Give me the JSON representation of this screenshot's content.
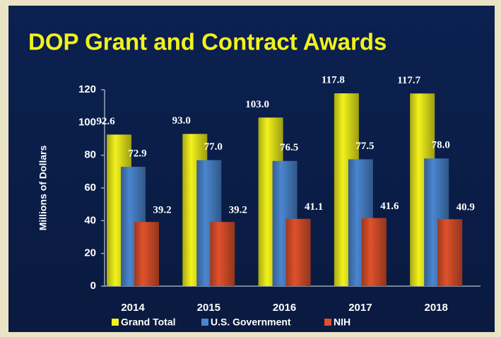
{
  "chart_data": {
    "type": "bar",
    "title": "DOP Grant and Contract Awards",
    "y_label": "Millions of Dollars",
    "categories": [
      "2014",
      "2015",
      "2016",
      "2017",
      "2018"
    ],
    "series": [
      {
        "name": "Grand Total",
        "color": "#f2f21c",
        "values": [
          92.6,
          93.0,
          103.0,
          117.8,
          117.7
        ],
        "value_labels": [
          "92.6",
          "93.0",
          "103.0",
          "117.8",
          "117.7"
        ]
      },
      {
        "name": "U.S. Government",
        "color": "#4a86cf",
        "values": [
          72.9,
          77.0,
          76.5,
          77.5,
          78.0
        ],
        "value_labels": [
          "72.9",
          "77.0",
          "76.5",
          "77.5",
          "78.0"
        ]
      },
      {
        "name": "NIH",
        "color": "#e0512b",
        "values": [
          39.2,
          39.2,
          41.1,
          41.6,
          40.9
        ],
        "value_labels": [
          "39.2",
          "39.2",
          "41.1",
          "41.6",
          "40.9"
        ]
      }
    ],
    "ylim": [
      0,
      120
    ],
    "yticks": [
      0,
      20,
      40,
      60,
      80,
      100,
      120
    ]
  }
}
